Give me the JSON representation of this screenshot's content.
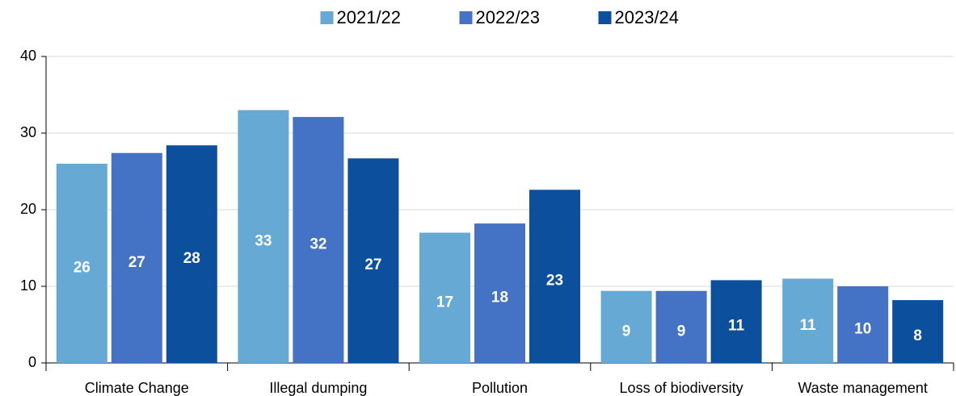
{
  "chart_data": {
    "type": "bar",
    "categories": [
      "Climate Change",
      "Illegal dumping",
      "Pollution",
      "Loss of biodiversity",
      "Waste management"
    ],
    "series": [
      {
        "name": "2021/22",
        "color": "#65a9d4",
        "values": [
          26.0,
          33.0,
          17.0,
          9.4,
          11.0
        ],
        "value_labels": [
          "26",
          "33",
          "17",
          "9",
          "11"
        ]
      },
      {
        "name": "2022/23",
        "color": "#4472c4",
        "values": [
          27.4,
          32.1,
          18.2,
          9.4,
          10.0
        ],
        "value_labels": [
          "27",
          "32",
          "18",
          "9",
          "10"
        ]
      },
      {
        "name": "2023/24",
        "color": "#0c4f9c",
        "values": [
          28.4,
          26.7,
          22.6,
          10.8,
          8.2
        ],
        "value_labels": [
          "28",
          "27",
          "23",
          "11",
          "8"
        ]
      }
    ],
    "ylim": [
      0,
      40
    ],
    "yticks": [
      0,
      10,
      20,
      30,
      40
    ],
    "grid": true,
    "legend": "top"
  }
}
